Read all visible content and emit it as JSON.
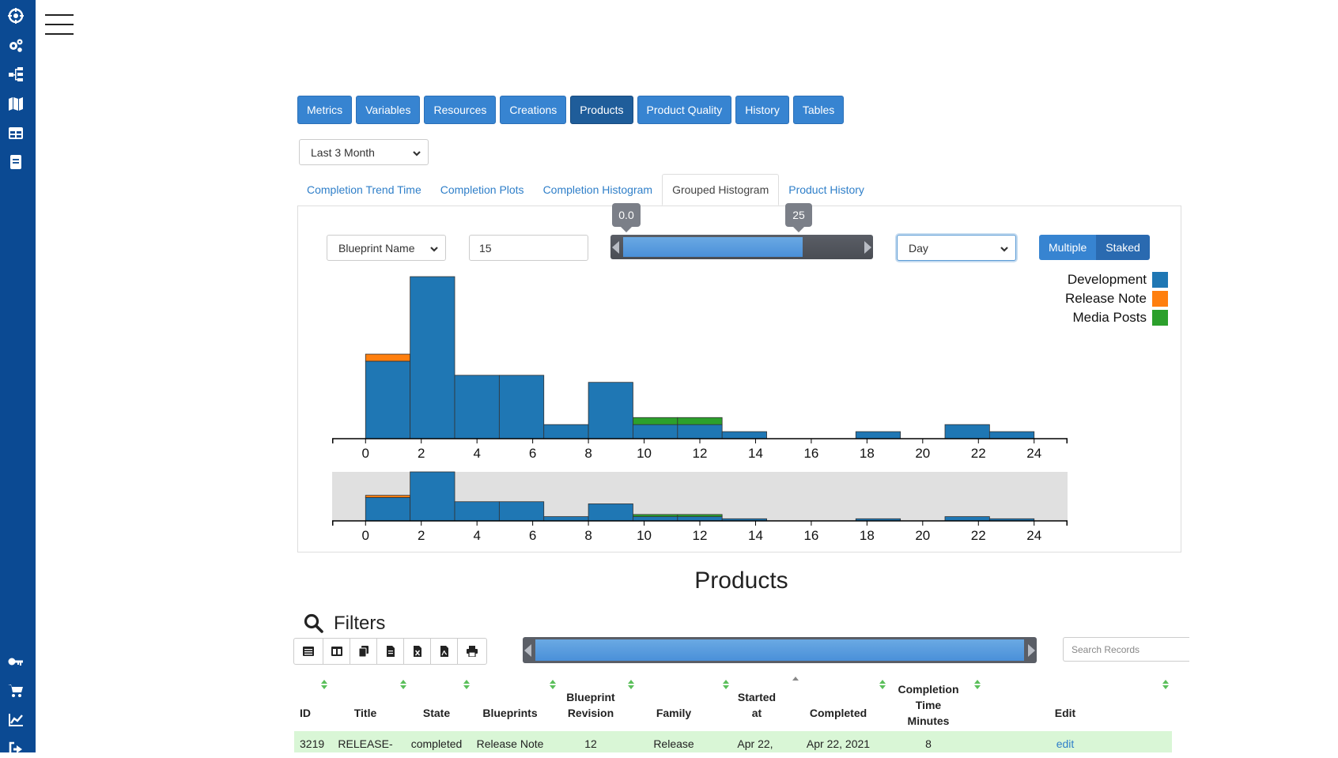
{
  "sidebar": {
    "top_icons": [
      "crosshair-icon",
      "cogs-icon",
      "sitemap-icon",
      "map-icon",
      "table-icon",
      "book-icon"
    ],
    "bottom_icons": [
      "key-icon",
      "cart-icon",
      "chart-line-icon",
      "sign-out-icon"
    ],
    "color": "#0b4a93"
  },
  "nav_tabs": [
    {
      "label": "Metrics",
      "active": false
    },
    {
      "label": "Variables",
      "active": false
    },
    {
      "label": "Resources",
      "active": false
    },
    {
      "label": "Creations",
      "active": false
    },
    {
      "label": "Products",
      "active": true
    },
    {
      "label": "Product Quality",
      "active": false
    },
    {
      "label": "History",
      "active": false
    },
    {
      "label": "Tables",
      "active": false
    }
  ],
  "period_select": {
    "value": "Last 3 Month"
  },
  "sub_tabs": [
    {
      "label": "Completion Trend Time",
      "active": false
    },
    {
      "label": "Completion Plots",
      "active": false
    },
    {
      "label": "Completion Histogram",
      "active": false
    },
    {
      "label": "Grouped Histogram",
      "active": true
    },
    {
      "label": "Product History",
      "active": false
    }
  ],
  "controls": {
    "group_by": "Blueprint Name",
    "bins": "15",
    "range_min": "0.0",
    "range_max": "25",
    "interval": "Day",
    "mode_options": [
      "Multiple",
      "Staked"
    ],
    "mode_selected": "Staked"
  },
  "chart_data": {
    "type": "bar",
    "stacked": true,
    "title": "",
    "xlabel": "",
    "ylabel": "",
    "x_ticks": [
      0,
      2,
      4,
      6,
      8,
      10,
      12,
      14,
      16,
      18,
      20,
      22,
      24
    ],
    "bin_width": 1.6,
    "bin_starts": [
      0,
      1.6,
      3.2,
      4.8,
      6.4,
      8.0,
      9.6,
      11.2,
      12.8,
      14.4,
      16.0,
      17.6,
      19.2,
      20.8,
      22.4
    ],
    "xlim": [
      -1.2,
      25.2
    ],
    "ylim": [
      0,
      23
    ],
    "legend_position": "top-right",
    "series": [
      {
        "name": "Development",
        "color": "#1f77b4",
        "values": [
          11,
          23,
          9,
          9,
          2,
          8,
          2,
          2,
          1,
          0,
          0,
          1,
          0,
          2,
          1
        ]
      },
      {
        "name": "Release Note",
        "color": "#ff7f0e",
        "values": [
          1,
          0,
          0,
          0,
          0,
          0,
          0,
          0,
          0,
          0,
          0,
          0,
          0,
          0,
          0
        ]
      },
      {
        "name": "Media Posts",
        "color": "#2ca02c",
        "values": [
          0,
          0,
          0,
          0,
          0,
          0,
          1,
          1,
          0,
          0,
          0,
          0,
          0,
          0,
          0
        ]
      }
    ]
  },
  "products": {
    "title": "Products",
    "filters_label": "Filters",
    "toolbar_icons": [
      "list-icon",
      "columns-icon",
      "copy-icon",
      "csv-icon",
      "excel-icon",
      "pdf-icon",
      "print-icon"
    ],
    "search_placeholder": "Search Records",
    "columns": [
      "ID",
      "Title",
      "State",
      "Blueprints",
      "Blueprint Revision",
      "Family",
      "Started at",
      "Completed",
      "Completion Time Minutes",
      "Edit"
    ],
    "rows": [
      {
        "id": "3219",
        "title": "RELEASE-",
        "state": "completed",
        "blueprints": "Release Note",
        "revision": "12",
        "family": "Release",
        "started": "Apr 22,",
        "completed": "Apr 22, 2021",
        "minutes": "8",
        "edit": "edit"
      }
    ]
  }
}
